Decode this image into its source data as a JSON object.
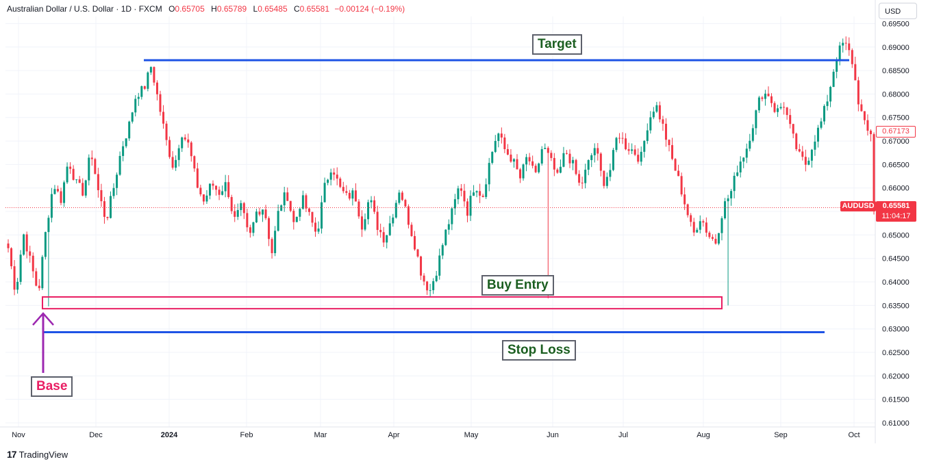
{
  "header": {
    "symbol_title": "Australian Dollar / U.S. Dollar · 1D · FXCM",
    "open_label": "O",
    "open": "0.65705",
    "high_label": "H",
    "high": "0.65789",
    "low_label": "L",
    "low": "0.65485",
    "close_label": "C",
    "close": "0.65581",
    "change": "−0.00124 (−0.19%)"
  },
  "currency_button": "USD",
  "price_scale": {
    "symbol_badge": "AUDUSD",
    "last_price": "0.65581",
    "countdown": "11:04:17",
    "secondary_price": "0.67173"
  },
  "annotations": {
    "target": "Target",
    "buy_entry": "Buy Entry",
    "stop_loss": "Stop Loss",
    "base": "Base"
  },
  "branding": {
    "logo_mark": "17",
    "logo_text": "TradingView"
  },
  "colors": {
    "up": "#089981",
    "down": "#f23645",
    "level_line": "#1e53e5",
    "entry_box": "#e91e63",
    "arrow": "#9c27b0",
    "grid": "#f0f3fa"
  },
  "chart_data": {
    "type": "candlestick",
    "title": "Australian Dollar / U.S. Dollar · 1D · FXCM",
    "ylim": [
      0.61,
      0.6955
    ],
    "y_ticks": [
      "0.69500",
      "0.69000",
      "0.68500",
      "0.68000",
      "0.67500",
      "0.67000",
      "0.66500",
      "0.66000",
      "0.65500",
      "0.65000",
      "0.64500",
      "0.64000",
      "0.63500",
      "0.63000",
      "0.62500",
      "0.62000",
      "0.61500",
      "0.61000"
    ],
    "x_ticks": [
      "Nov",
      "Dec",
      "2024",
      "Feb",
      "Mar",
      "Apr",
      "May",
      "Jun",
      "Jul",
      "Aug",
      "Sep",
      "Oct"
    ],
    "grid": true,
    "last_price": 0.65581,
    "levels": {
      "target": 0.6872,
      "stop_loss": 0.6293,
      "buy_entry_zone": [
        0.6343,
        0.6368
      ]
    },
    "path": [
      0.6472,
      0.6375,
      0.6505,
      0.644,
      0.6375,
      0.651,
      0.661,
      0.6575,
      0.666,
      0.661,
      0.659,
      0.668,
      0.659,
      0.653,
      0.66,
      0.668,
      0.673,
      0.68,
      0.681,
      0.686,
      0.678,
      0.67,
      0.664,
      0.672,
      0.669,
      0.661,
      0.657,
      0.661,
      0.659,
      0.661,
      0.653,
      0.656,
      0.649,
      0.655,
      0.656,
      0.646,
      0.656,
      0.659,
      0.652,
      0.658,
      0.654,
      0.65,
      0.66,
      0.665,
      0.66,
      0.658,
      0.659,
      0.652,
      0.658,
      0.652,
      0.649,
      0.654,
      0.66,
      0.654,
      0.648,
      0.641,
      0.638,
      0.643,
      0.65,
      0.655,
      0.661,
      0.655,
      0.661,
      0.658,
      0.666,
      0.672,
      0.668,
      0.666,
      0.662,
      0.667,
      0.662,
      0.669,
      0.666,
      0.662,
      0.668,
      0.665,
      0.66,
      0.665,
      0.669,
      0.661,
      0.664,
      0.672,
      0.669,
      0.668,
      0.666,
      0.674,
      0.678,
      0.673,
      0.667,
      0.662,
      0.656,
      0.65,
      0.654,
      0.65,
      0.6485,
      0.656,
      0.659,
      0.665,
      0.668,
      0.674,
      0.68,
      0.68,
      0.676,
      0.678,
      0.672,
      0.667,
      0.665,
      0.67,
      0.674,
      0.68,
      0.688,
      0.691,
      0.688,
      0.678,
      0.672,
      0.6717
    ],
    "series": [
      {
        "name": "AUDUSD",
        "ohlc_note": "daily candles Nov 2023 – Oct 2024"
      }
    ]
  }
}
